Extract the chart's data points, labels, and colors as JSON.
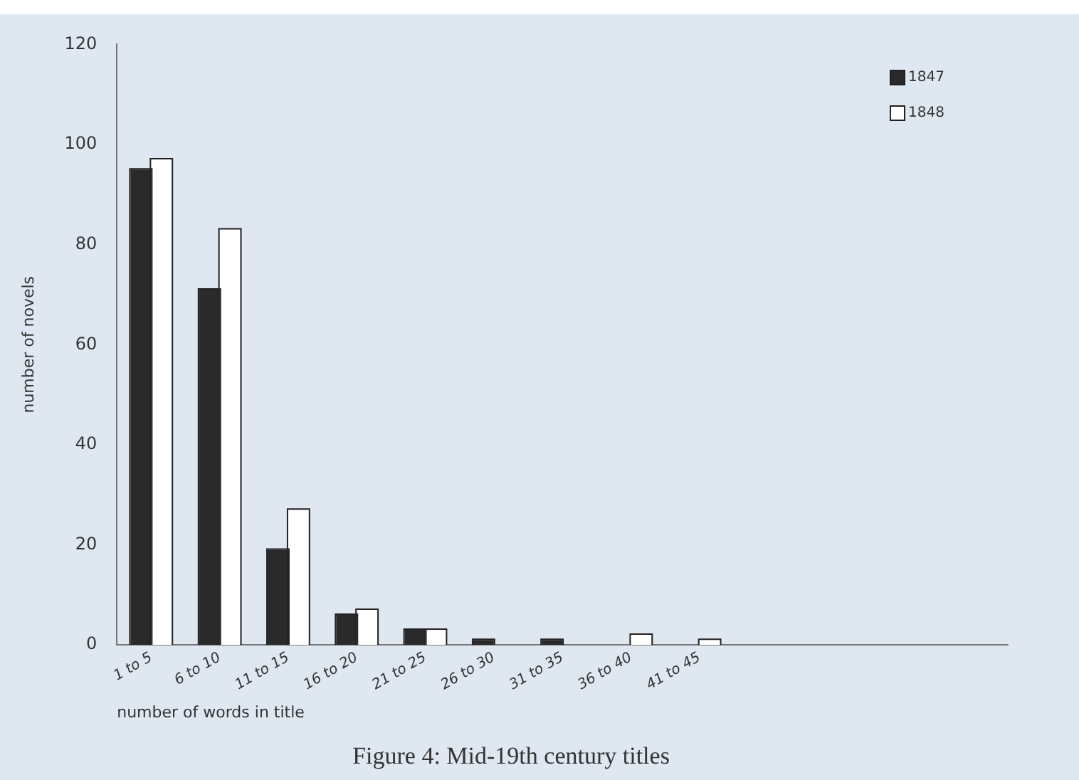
{
  "chart_data": {
    "type": "bar",
    "title": "Figure 4: Mid-19th century titles",
    "xlabel": "number of words in title",
    "ylabel": "number of novels",
    "categories": [
      "1 to 5",
      "6 to 10",
      "11 to 15",
      "16 to 20",
      "21 to 25",
      "26 to 30",
      "31 to 35",
      "36 to 40",
      "41 to 45",
      null,
      null,
      null,
      null
    ],
    "series": [
      {
        "name": "1847",
        "color": "#2a2a2a",
        "values": [
          95,
          71,
          19,
          6,
          3,
          1,
          1,
          0,
          0,
          null,
          null,
          null,
          null
        ]
      },
      {
        "name": "1848",
        "color": "#ffffff",
        "values": [
          97,
          83,
          27,
          7,
          3,
          0,
          0,
          2,
          1,
          null,
          null,
          null,
          null
        ]
      }
    ],
    "ylim": [
      0,
      120
    ],
    "yticks": [
      0,
      20,
      40,
      60,
      80,
      100,
      120
    ],
    "grid": false,
    "legend": "top right"
  }
}
